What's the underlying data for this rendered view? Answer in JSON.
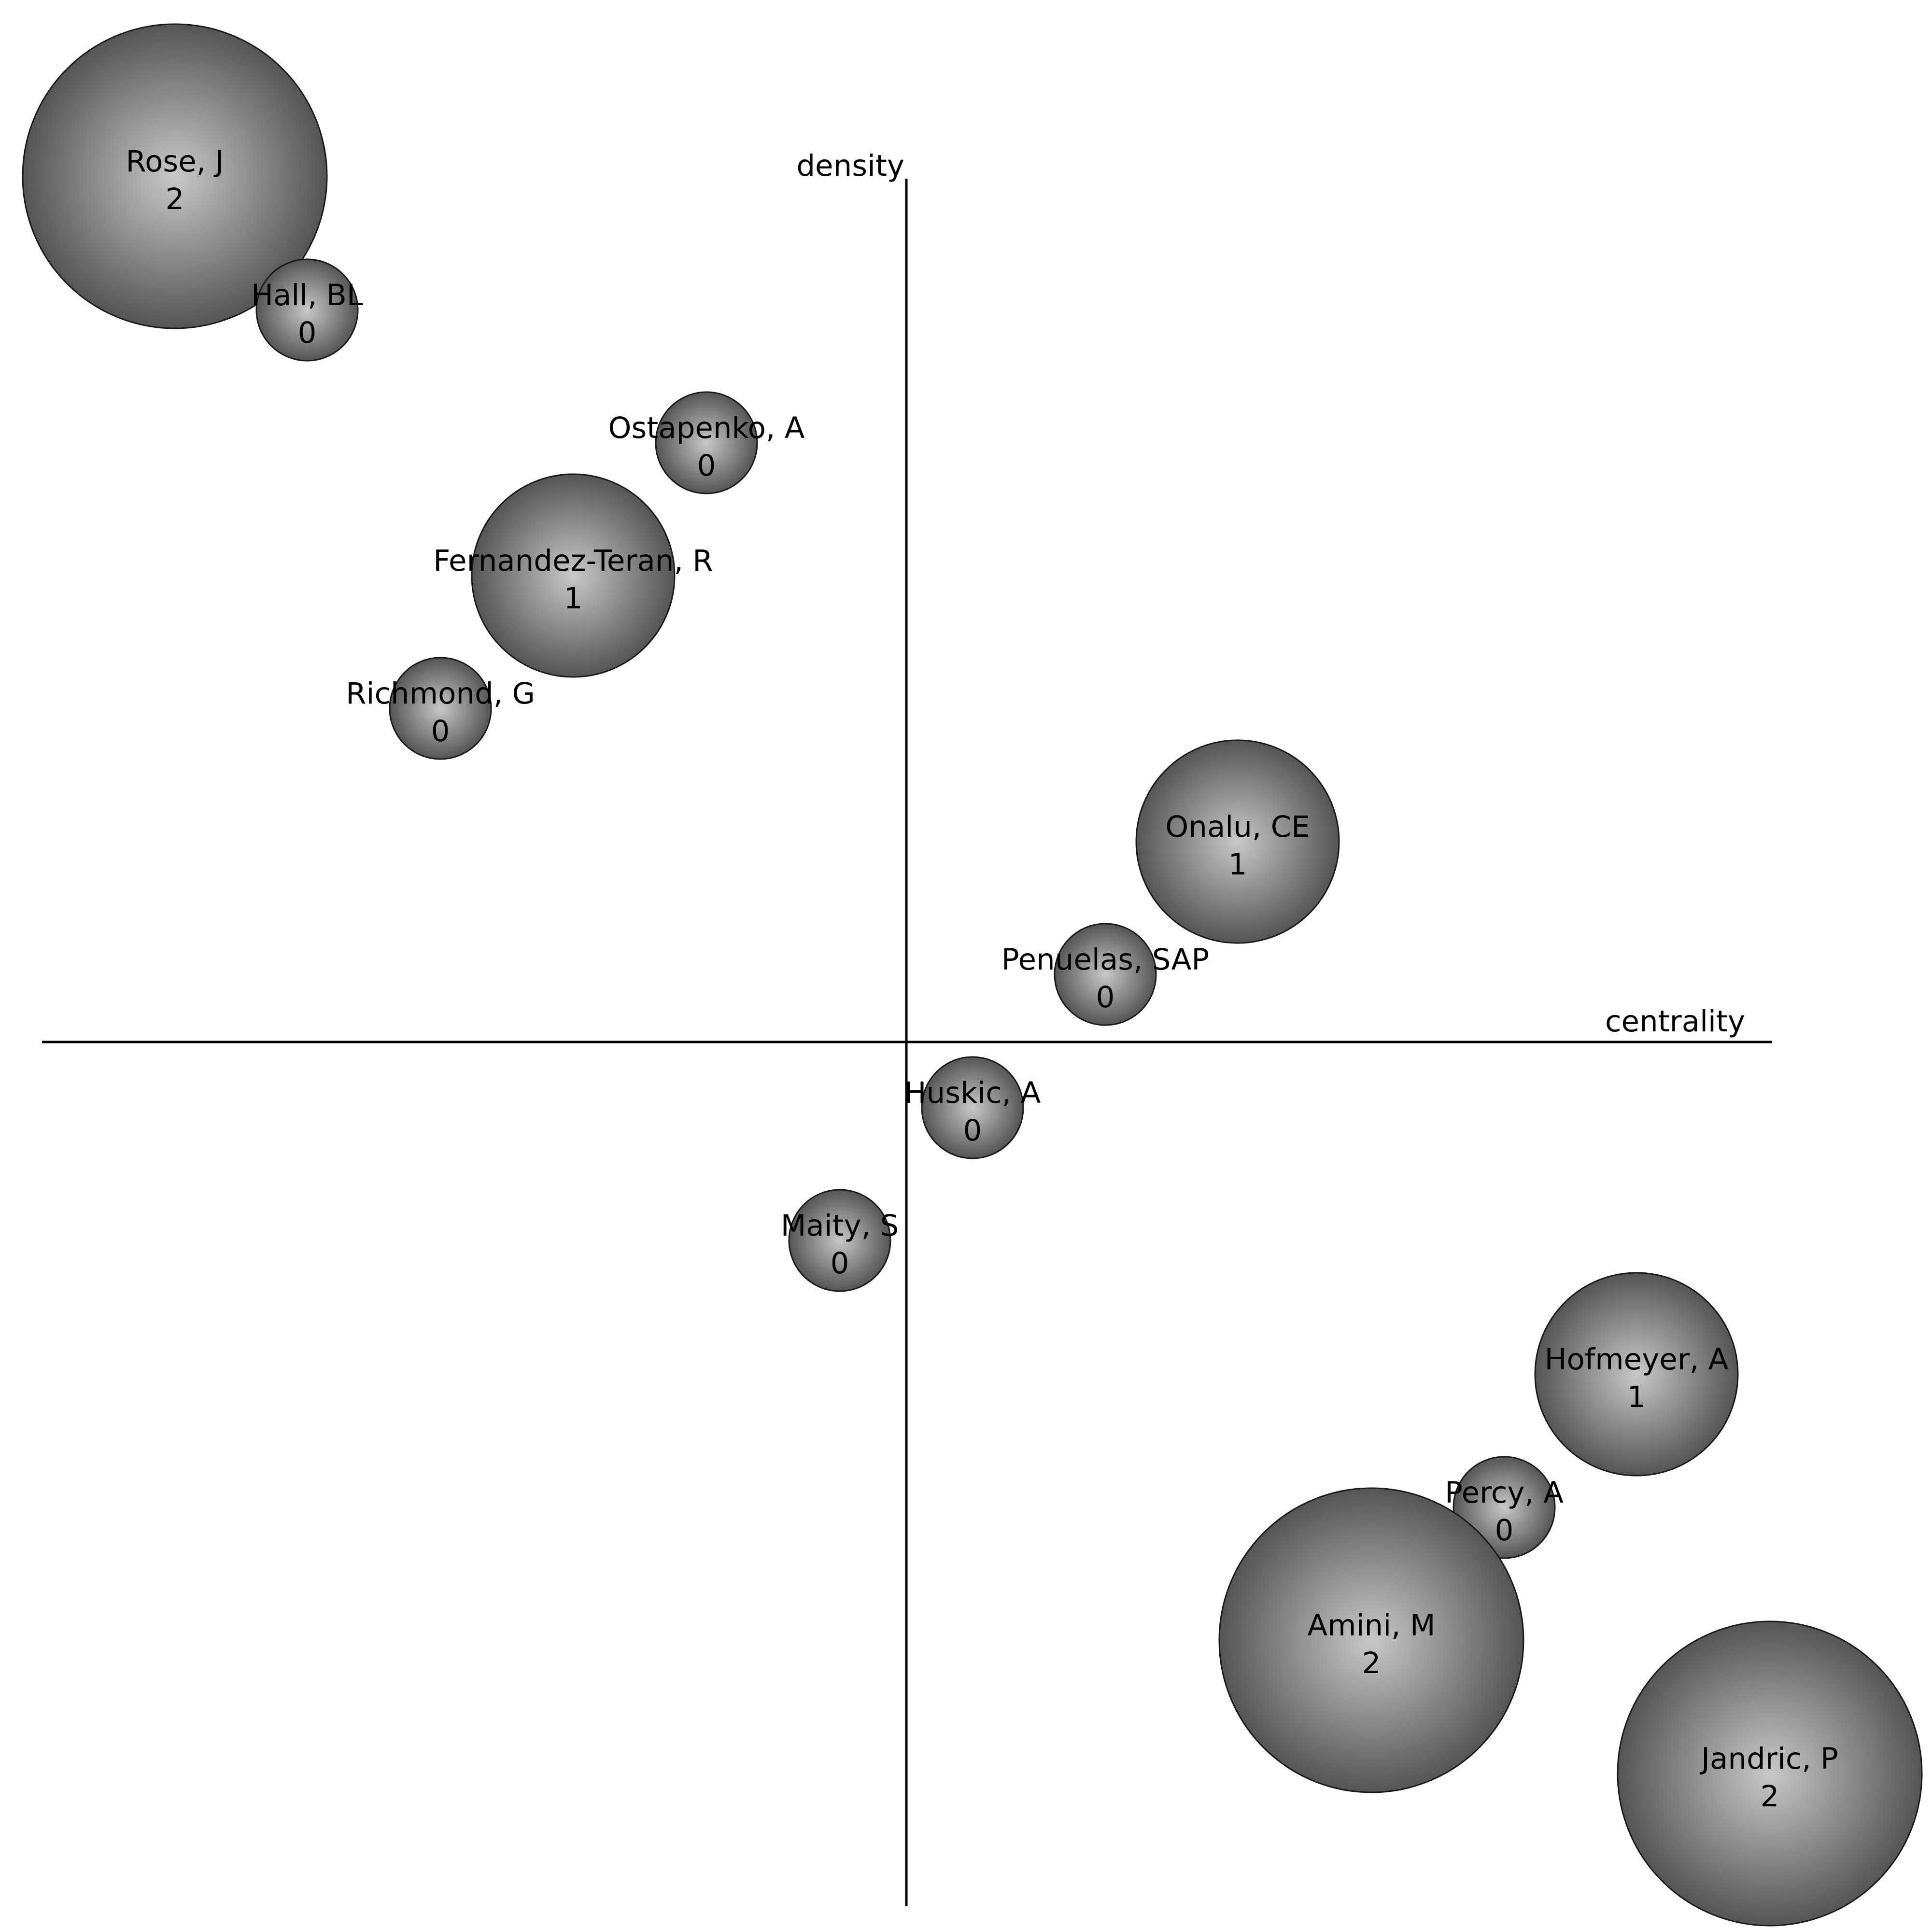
{
  "chart_data": {
    "type": "scatter",
    "title": "",
    "xlabel": "centrality",
    "ylabel": "density",
    "grid": false,
    "legend": "none",
    "colors": {
      "bubble_center": "#c8c8c8",
      "bubble_edge": "#555555",
      "bubble_stroke": "#1a1a1a",
      "axis": "#000000"
    },
    "points": [
      {
        "label": "Rose, J",
        "value": 2
      },
      {
        "label": "Hall, BL",
        "value": 0
      },
      {
        "label": "Ostapenko, A",
        "value": 0
      },
      {
        "label": "Fernandez-Teran, R",
        "value": 1
      },
      {
        "label": "Richmond, G",
        "value": 0
      },
      {
        "label": "Onalu, CE",
        "value": 1
      },
      {
        "label": "Penuelas, SAP",
        "value": 0
      },
      {
        "label": "Huskic, A",
        "value": 0
      },
      {
        "label": "Maity, S",
        "value": 0
      },
      {
        "label": "Hofmeyer, A",
        "value": 1
      },
      {
        "label": "Percy, A",
        "value": 0
      },
      {
        "label": "Amini, M",
        "value": 2
      },
      {
        "label": "Jandric, P",
        "value": 2
      }
    ]
  }
}
